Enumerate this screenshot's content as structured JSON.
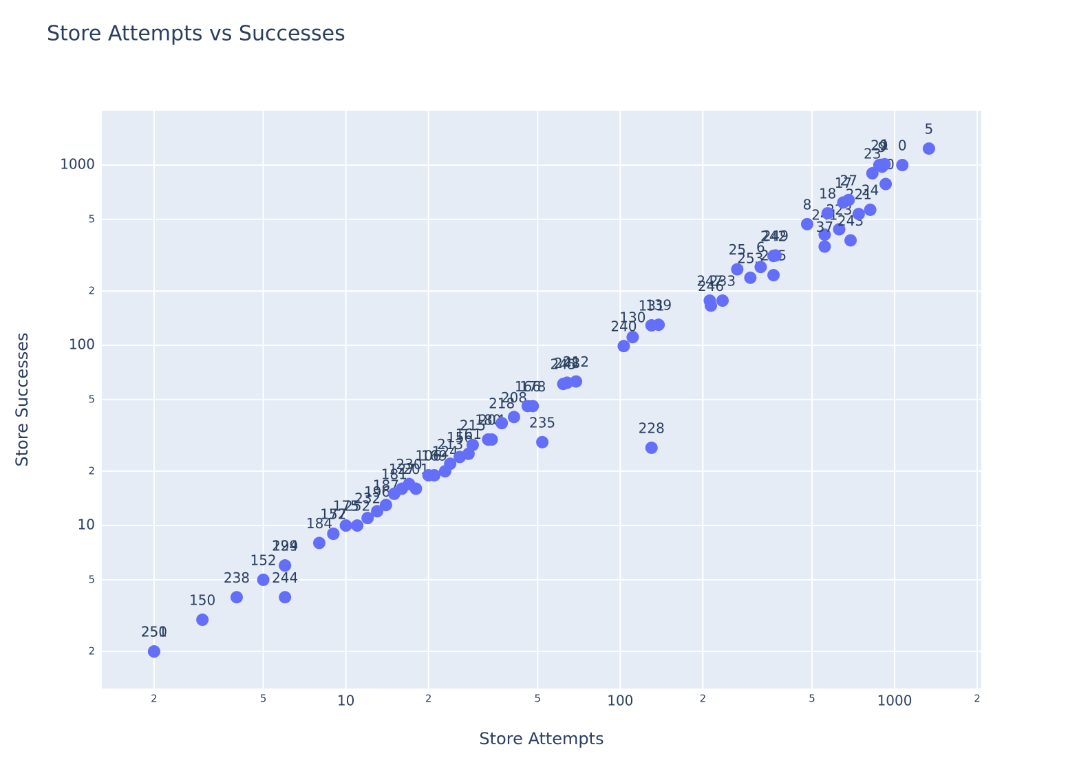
{
  "chart_data": {
    "type": "scatter",
    "title": "Store Attempts vs Successes",
    "x_label": "Store Attempts",
    "y_label": "Store Successes",
    "log_x": true,
    "log_y": true,
    "grid": true,
    "color": "#636efa",
    "xlim": [
      1.29,
      2070
    ],
    "ylim": [
      1.246,
      2002
    ],
    "xticks": [
      2,
      5,
      10,
      {
        "value": 20,
        "label": "2"
      },
      {
        "value": 50,
        "label": "5"
      },
      100,
      {
        "value": 200,
        "label": "2"
      },
      {
        "value": 500,
        "label": "5"
      },
      1000,
      {
        "value": 2000,
        "label": "2"
      }
    ],
    "yticks": [
      2,
      5,
      10,
      {
        "value": 20,
        "label": "2"
      },
      {
        "value": 50,
        "label": "5"
      },
      100,
      {
        "value": 200,
        "label": "2"
      },
      {
        "value": 500,
        "label": "5"
      },
      1000
    ],
    "text": [
      "250",
      "251",
      "150",
      "238",
      "152",
      "244",
      "194",
      "229",
      "184",
      "157",
      "172",
      "175",
      "252",
      "232",
      "196",
      "187",
      "181",
      "127",
      "230",
      "201",
      "106",
      "169",
      "124",
      "213",
      "156",
      "161",
      "215",
      "180",
      "204",
      "218",
      "208",
      "166",
      "178",
      "235",
      "245",
      "248",
      "212",
      "240",
      "130",
      "131",
      "139",
      "228",
      "246",
      "247",
      "233",
      "25",
      "253",
      "6",
      "255",
      "242",
      "249",
      "8",
      "241",
      "37",
      "223",
      "243",
      "221",
      "24",
      "18",
      "17",
      "27",
      "20",
      "23",
      "29",
      "1",
      "9",
      "0",
      "5"
    ],
    "x": [
      2,
      2,
      3,
      4,
      5,
      6,
      6,
      6,
      8,
      9,
      9,
      10,
      11,
      12,
      13,
      14,
      15,
      16,
      17,
      18,
      20,
      21,
      23,
      24,
      26,
      28,
      29,
      33,
      34,
      37,
      41,
      46,
      48,
      52,
      62,
      64,
      69,
      103,
      111,
      130,
      138,
      130,
      214,
      212,
      236,
      267,
      298,
      325,
      362,
      362,
      368,
      480,
      556,
      556,
      628,
      691,
      740,
      815,
      570,
      650,
      680,
      928,
      830,
      880,
      920,
      900,
      1067,
      1334
    ],
    "y": [
      2,
      2,
      3,
      4,
      5,
      4,
      6,
      6,
      8,
      9,
      9,
      10,
      10,
      11,
      12,
      13,
      15,
      16,
      17,
      16,
      19,
      19,
      20,
      22,
      24,
      25,
      28,
      30,
      30,
      37,
      40,
      46,
      46,
      29,
      61,
      62,
      63,
      99,
      111,
      129,
      130,
      27,
      166,
      177,
      177,
      264,
      237,
      272,
      245,
      313,
      315,
      470,
      411,
      353,
      440,
      382,
      535,
      565,
      540,
      620,
      640,
      785,
      900,
      1000,
      1010,
      980,
      1000,
      1235
    ]
  }
}
